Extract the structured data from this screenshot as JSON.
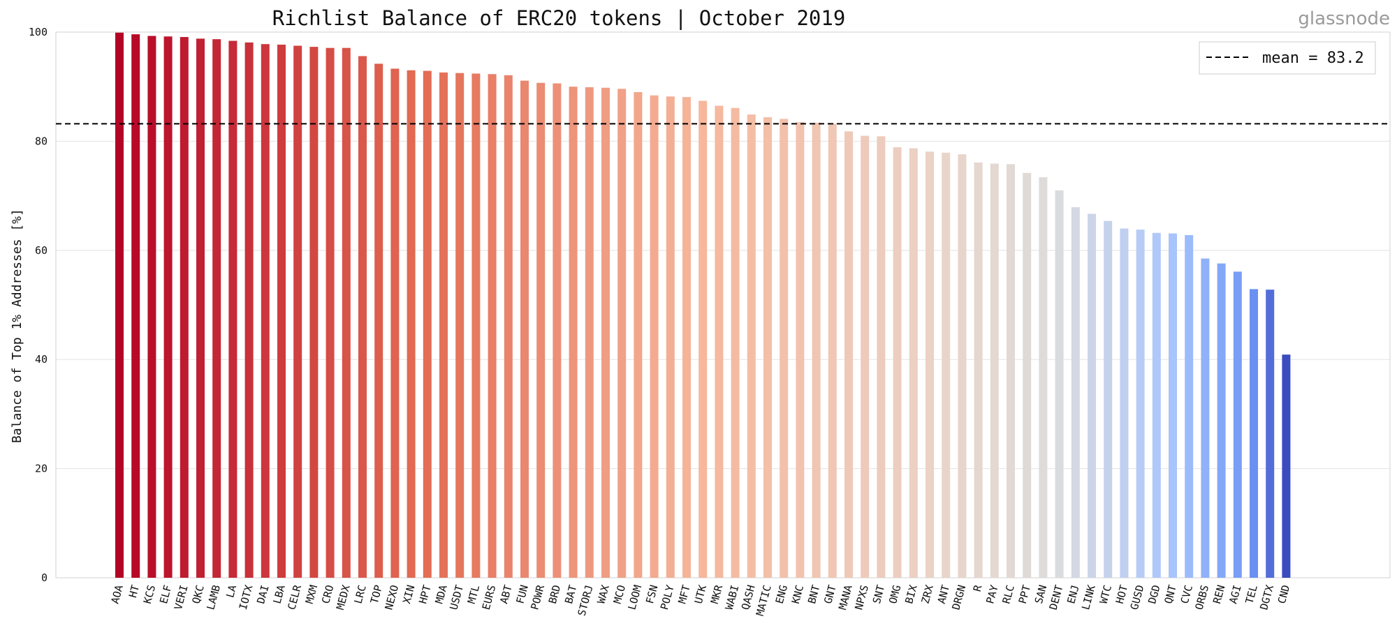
{
  "brand": "glassnode",
  "chart_data": {
    "type": "bar",
    "title": "Richlist Balance of ERC20 tokens | October 2019",
    "xlabel": "",
    "ylabel": "Balance of Top 1% Addresses [%]",
    "ylim": [
      0,
      100
    ],
    "yticks": [
      0,
      20,
      40,
      60,
      80,
      100
    ],
    "grid": true,
    "legend_position": "top-right",
    "mean_line": {
      "label": "mean = 83.2",
      "value": 83.2,
      "style": "dashed",
      "color": "#000000"
    },
    "categories": [
      "AOA",
      "HT",
      "KCS",
      "ELF",
      "VERI",
      "QKC",
      "LAMB",
      "LA",
      "IOTX",
      "DAI",
      "LBA",
      "CELR",
      "MXM",
      "CRO",
      "MEDX",
      "LRC",
      "TOP",
      "NEXO",
      "XIN",
      "HPT",
      "MDA",
      "USDT",
      "MTL",
      "EURS",
      "ABT",
      "FUN",
      "POWR",
      "BRD",
      "BAT",
      "STORJ",
      "WAX",
      "MCO",
      "LOOM",
      "FSN",
      "POLY",
      "MFT",
      "UTK",
      "MKR",
      "WABI",
      "QASH",
      "MATIC",
      "ENG",
      "KNC",
      "BNT",
      "GNT",
      "MANA",
      "NPXS",
      "SNT",
      "OMG",
      "BIX",
      "ZRX",
      "ANT",
      "DRGN",
      "R",
      "PAY",
      "RLC",
      "PPT",
      "SAN",
      "DENT",
      "ENJ",
      "LINK",
      "WTC",
      "HOT",
      "GUSD",
      "DGD",
      "QNT",
      "CVC",
      "ORBS",
      "REN",
      "AGI",
      "TEL",
      "DGTX",
      "CND"
    ],
    "values": [
      99.9,
      99.6,
      99.3,
      99.2,
      99.1,
      98.8,
      98.7,
      98.4,
      98.1,
      97.8,
      97.7,
      97.5,
      97.3,
      97.1,
      97.1,
      95.6,
      94.2,
      93.3,
      93.0,
      92.9,
      92.6,
      92.5,
      92.4,
      92.3,
      92.1,
      91.1,
      90.7,
      90.6,
      90.0,
      89.9,
      89.8,
      89.6,
      89.0,
      88.4,
      88.2,
      88.1,
      87.4,
      86.5,
      86.1,
      84.9,
      84.4,
      84.1,
      83.5,
      83.4,
      83.2,
      81.8,
      81.0,
      80.9,
      78.9,
      78.7,
      78.1,
      77.9,
      77.6,
      76.1,
      75.9,
      75.8,
      74.2,
      73.4,
      71.0,
      67.9,
      66.7,
      65.4,
      64.0,
      63.8,
      63.2,
      63.1,
      62.8,
      58.5,
      57.6,
      56.1,
      52.9,
      52.8,
      40.9
    ]
  }
}
